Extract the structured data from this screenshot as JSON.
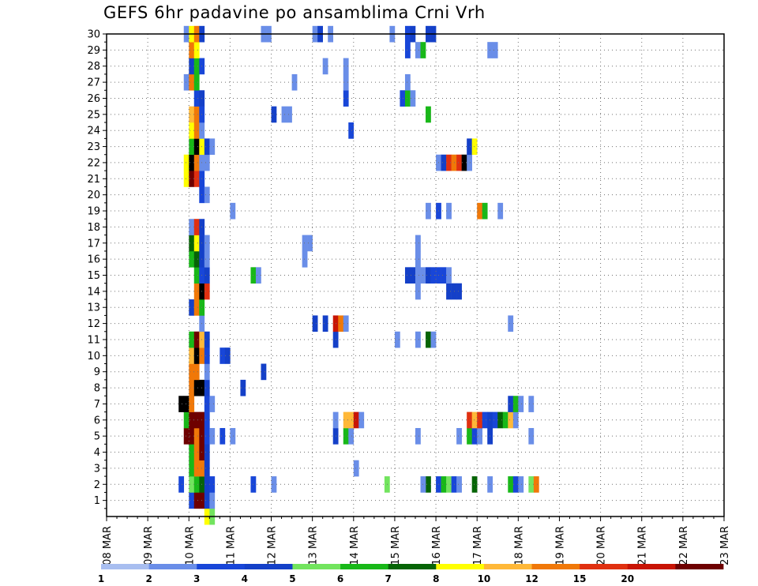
{
  "chart_data": {
    "type": "heatmap",
    "title": "GEFS 6hr padavine po ansamblima Crni Vrh",
    "xlabel": "",
    "ylabel": "",
    "x_tick_labels": [
      "08 MAR",
      "09 MAR",
      "10 MAR",
      "11 MAR",
      "12 MAR",
      "13 MAR",
      "14 MAR",
      "15 MAR",
      "16 MAR",
      "17 MAR",
      "18 MAR",
      "19 MAR",
      "20 MAR",
      "21 MAR",
      "22 MAR",
      "23 MAR"
    ],
    "y_tick_labels": [
      "1",
      "2",
      "3",
      "4",
      "5",
      "6",
      "7",
      "8",
      "9",
      "10",
      "11",
      "12",
      "13",
      "14",
      "15",
      "16",
      "17",
      "18",
      "19",
      "20",
      "21",
      "22",
      "23",
      "24",
      "25",
      "26",
      "27",
      "28",
      "29",
      "30"
    ],
    "xlim": [
      0,
      60
    ],
    "ylim": [
      0,
      30
    ],
    "time_step_hours": 6,
    "grid": true,
    "legend_position": "bottom",
    "colorbar": {
      "labels": [
        "1",
        "2",
        "3",
        "4",
        "5",
        "6",
        "7",
        "8",
        "10",
        "12",
        "15",
        "20"
      ],
      "colors": [
        "#a8bef0",
        "#6a8ee8",
        "#1846d8",
        "#1440c8",
        "#72e45e",
        "#18b818",
        "#066406",
        "#ffff00",
        "#ffb838",
        "#f07808",
        "#e03010",
        "#c81404",
        "#6e0000"
      ]
    },
    "series": [
      {
        "member": 0,
        "cells": [
          [
            9.5,
            7
          ],
          [
            10,
            4
          ]
        ]
      },
      {
        "member": 1,
        "cells": [
          [
            8,
            2
          ],
          [
            8.5,
            12
          ],
          [
            9,
            12
          ],
          [
            9.5,
            3
          ],
          [
            10,
            1
          ]
        ]
      },
      {
        "member": 2,
        "cells": [
          [
            7,
            2
          ],
          [
            8,
            4
          ],
          [
            8.5,
            5
          ],
          [
            9,
            6
          ],
          [
            9.5,
            3
          ],
          [
            10,
            2
          ],
          [
            14,
            2
          ],
          [
            16,
            1
          ],
          [
            27,
            4
          ],
          [
            31,
            6
          ],
          [
            30.5,
            1
          ],
          [
            32,
            2
          ],
          [
            32.5,
            5
          ],
          [
            33,
            4
          ],
          [
            33.5,
            2
          ],
          [
            34,
            1
          ],
          [
            35.5,
            6
          ],
          [
            37,
            1
          ],
          [
            39,
            5
          ],
          [
            39.5,
            2
          ],
          [
            40,
            1
          ],
          [
            41,
            4
          ],
          [
            41.5,
            9
          ]
        ]
      },
      {
        "member": 3,
        "cells": [
          [
            8,
            5
          ],
          [
            8.5,
            9
          ],
          [
            9,
            9
          ],
          [
            9.5,
            3
          ],
          [
            24,
            1
          ]
        ]
      },
      {
        "member": 4,
        "cells": [
          [
            8,
            5
          ],
          [
            8.5,
            9
          ],
          [
            9,
            12
          ],
          [
            9.5,
            3
          ]
        ]
      },
      {
        "member": 5,
        "cells": [
          [
            7.5,
            12
          ],
          [
            8,
            12
          ],
          [
            8.5,
            9
          ],
          [
            9,
            12
          ],
          [
            9.5,
            2
          ],
          [
            10,
            1
          ],
          [
            11,
            2
          ],
          [
            12,
            1
          ],
          [
            22,
            3
          ],
          [
            23,
            5
          ],
          [
            23.5,
            1
          ],
          [
            30,
            1
          ],
          [
            34,
            1
          ],
          [
            35,
            5
          ],
          [
            35.5,
            2
          ],
          [
            36,
            1
          ],
          [
            37,
            3
          ],
          [
            41,
            1
          ]
        ]
      },
      {
        "member": 6,
        "cells": [
          [
            7.5,
            5
          ],
          [
            8,
            12
          ],
          [
            8.5,
            12
          ],
          [
            9,
            12
          ],
          [
            9.5,
            2
          ],
          [
            22,
            1
          ],
          [
            23,
            8
          ],
          [
            23.5,
            8
          ],
          [
            24,
            11
          ],
          [
            24.5,
            1
          ],
          [
            35,
            10
          ],
          [
            35.5,
            8
          ],
          [
            36,
            10
          ],
          [
            36.5,
            2
          ],
          [
            37,
            3
          ],
          [
            37.5,
            2
          ],
          [
            38,
            6
          ],
          [
            38.5,
            5
          ],
          [
            39,
            8
          ],
          [
            39.5,
            1
          ]
        ]
      },
      {
        "member": 7,
        "cells": [
          [
            7,
            13
          ],
          [
            7.5,
            13
          ],
          [
            8,
            9
          ],
          [
            9.5,
            2
          ],
          [
            10,
            1
          ],
          [
            39,
            3
          ],
          [
            39.5,
            5
          ],
          [
            40,
            1
          ],
          [
            41,
            1
          ]
        ]
      },
      {
        "member": 8,
        "cells": [
          [
            8,
            9
          ],
          [
            8.5,
            14
          ],
          [
            9,
            15
          ],
          [
            9.5,
            3
          ],
          [
            13,
            3
          ]
        ]
      },
      {
        "member": 9,
        "cells": [
          [
            8,
            9
          ],
          [
            8.5,
            9
          ],
          [
            9.5,
            1
          ],
          [
            15,
            3
          ]
        ]
      },
      {
        "member": 10,
        "cells": [
          [
            8,
            8
          ],
          [
            8.5,
            15
          ],
          [
            9,
            9
          ],
          [
            9.5,
            2
          ],
          [
            11,
            2
          ],
          [
            11.5,
            3
          ]
        ]
      },
      {
        "member": 11,
        "cells": [
          [
            8,
            5
          ],
          [
            8.5,
            12
          ],
          [
            9,
            8
          ],
          [
            9.5,
            3
          ],
          [
            22,
            3
          ],
          [
            28,
            1
          ],
          [
            30,
            1
          ],
          [
            31,
            6
          ],
          [
            31.5,
            1
          ]
        ]
      },
      {
        "member": 12,
        "cells": [
          [
            9,
            1
          ],
          [
            20,
            3
          ],
          [
            21,
            3
          ],
          [
            22,
            11
          ],
          [
            22.5,
            9
          ],
          [
            23,
            1
          ],
          [
            39,
            1
          ]
        ]
      },
      {
        "member": 13,
        "cells": [
          [
            8,
            3
          ],
          [
            8.5,
            9
          ],
          [
            9,
            5
          ]
        ]
      },
      {
        "member": 14,
        "cells": [
          [
            8.5,
            9
          ],
          [
            9,
            15
          ],
          [
            9.5,
            10
          ],
          [
            30,
            1
          ],
          [
            33,
            3
          ],
          [
            33.5,
            3
          ],
          [
            34,
            3
          ]
        ]
      },
      {
        "member": 15,
        "cells": [
          [
            8.5,
            5
          ],
          [
            9,
            2
          ],
          [
            9.5,
            3
          ],
          [
            14,
            5
          ],
          [
            14.5,
            1
          ],
          [
            29,
            3
          ],
          [
            29.5,
            3
          ],
          [
            30,
            1
          ],
          [
            30.5,
            1
          ],
          [
            31,
            3
          ],
          [
            31.5,
            2
          ],
          [
            32,
            2
          ],
          [
            32.5,
            2
          ],
          [
            33,
            1
          ]
        ]
      },
      {
        "member": 16,
        "cells": [
          [
            8,
            5
          ],
          [
            8.5,
            6
          ],
          [
            9,
            3
          ],
          [
            9.5,
            1
          ],
          [
            19,
            1
          ],
          [
            30,
            1
          ]
        ]
      },
      {
        "member": 17,
        "cells": [
          [
            8,
            6
          ],
          [
            8.5,
            7
          ],
          [
            9,
            3
          ],
          [
            9.5,
            1
          ],
          [
            19,
            1
          ],
          [
            19.5,
            1
          ],
          [
            30,
            1
          ]
        ]
      },
      {
        "member": 18,
        "cells": [
          [
            8,
            1
          ],
          [
            8.5,
            10
          ],
          [
            9,
            3
          ]
        ]
      },
      {
        "member": 19,
        "cells": [
          [
            12,
            1
          ],
          [
            31,
            1
          ],
          [
            32,
            2
          ],
          [
            33,
            1
          ],
          [
            36,
            9
          ],
          [
            36.5,
            5
          ],
          [
            38,
            1
          ]
        ]
      },
      {
        "member": 20,
        "cells": [
          [
            9,
            2
          ],
          [
            9.5,
            1
          ]
        ]
      },
      {
        "member": 21,
        "cells": [
          [
            7.5,
            7
          ],
          [
            8,
            12
          ],
          [
            8.5,
            10
          ],
          [
            9,
            2
          ]
        ]
      },
      {
        "member": 22,
        "cells": [
          [
            7.5,
            7
          ],
          [
            8,
            13
          ],
          [
            8.5,
            9
          ],
          [
            9,
            1
          ],
          [
            9.5,
            1
          ],
          [
            32,
            1
          ],
          [
            32.5,
            3
          ],
          [
            33,
            10
          ],
          [
            33.5,
            9
          ],
          [
            34,
            10
          ],
          [
            34.5,
            13
          ],
          [
            35,
            1
          ]
        ]
      },
      {
        "member": 23,
        "cells": [
          [
            8,
            5
          ],
          [
            8.5,
            13
          ],
          [
            9,
            7
          ],
          [
            9.5,
            3
          ],
          [
            10,
            1
          ],
          [
            35,
            3
          ],
          [
            35.5,
            7
          ]
        ]
      },
      {
        "member": 24,
        "cells": [
          [
            8,
            7
          ],
          [
            8.5,
            9
          ],
          [
            9,
            1
          ],
          [
            23.5,
            2
          ]
        ]
      },
      {
        "member": 25,
        "cells": [
          [
            8,
            8
          ],
          [
            8.5,
            9
          ],
          [
            9,
            2
          ],
          [
            16,
            3
          ],
          [
            17,
            1
          ],
          [
            17.5,
            1
          ],
          [
            31,
            5
          ]
        ]
      },
      {
        "member": 26,
        "cells": [
          [
            8.5,
            2
          ],
          [
            9,
            3
          ],
          [
            23,
            2
          ],
          [
            28.5,
            2
          ],
          [
            29,
            5
          ],
          [
            29.5,
            1
          ]
        ]
      },
      {
        "member": 27,
        "cells": [
          [
            7.5,
            1
          ],
          [
            8,
            9
          ],
          [
            8.5,
            5
          ],
          [
            18,
            1
          ],
          [
            23,
            1
          ],
          [
            29,
            1
          ]
        ]
      },
      {
        "member": 28,
        "cells": [
          [
            8,
            3
          ],
          [
            8.5,
            5
          ],
          [
            9,
            2
          ],
          [
            21,
            1
          ],
          [
            23,
            1
          ]
        ]
      },
      {
        "member": 29,
        "cells": [
          [
            8,
            9
          ],
          [
            8.5,
            7
          ],
          [
            29,
            2
          ],
          [
            30,
            1
          ],
          [
            30.5,
            5
          ],
          [
            37,
            1
          ],
          [
            37.5,
            1
          ]
        ]
      },
      {
        "member": 30,
        "cells": [
          [
            7.5,
            1
          ],
          [
            8,
            7
          ],
          [
            8.5,
            9
          ],
          [
            9,
            3
          ],
          [
            15,
            1
          ],
          [
            15.5,
            1
          ],
          [
            20,
            1
          ],
          [
            20.5,
            3
          ],
          [
            21.5,
            1
          ],
          [
            27.5,
            1
          ],
          [
            29,
            2
          ],
          [
            29.5,
            3
          ],
          [
            31,
            3
          ],
          [
            31.5,
            3
          ]
        ]
      }
    ]
  }
}
